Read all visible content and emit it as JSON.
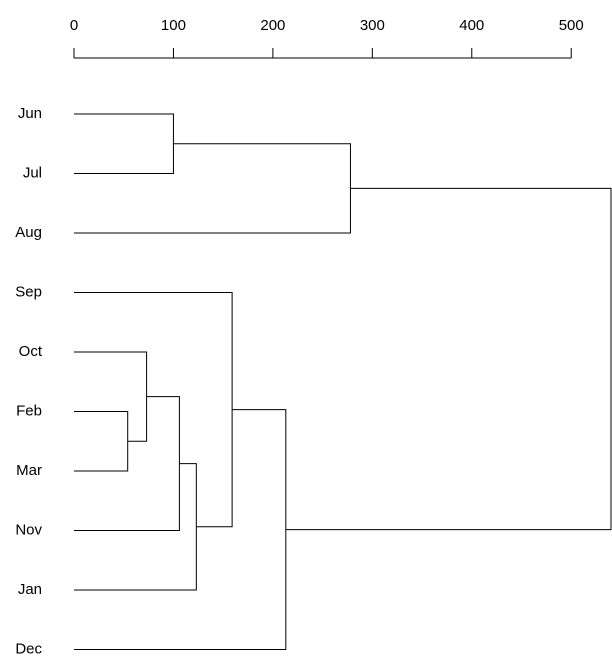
{
  "chart_data": {
    "type": "dendrogram",
    "categories": [
      "Jun",
      "Jul",
      "Aug",
      "Sep",
      "Oct",
      "Feb",
      "Mar",
      "Nov",
      "Jan",
      "Dec"
    ],
    "merges": [
      {
        "a": {
          "leaf": 0
        },
        "b": {
          "leaf": 1
        },
        "height": 100
      },
      {
        "a": {
          "merge": 0
        },
        "b": {
          "leaf": 2
        },
        "height": 278
      },
      {
        "a": {
          "leaf": 5
        },
        "b": {
          "leaf": 6
        },
        "height": 54
      },
      {
        "a": {
          "leaf": 4
        },
        "b": {
          "merge": 2
        },
        "height": 73
      },
      {
        "a": {
          "merge": 3
        },
        "b": {
          "leaf": 7
        },
        "height": 106
      },
      {
        "a": {
          "merge": 4
        },
        "b": {
          "leaf": 8
        },
        "height": 123
      },
      {
        "a": {
          "leaf": 3
        },
        "b": {
          "merge": 5
        },
        "height": 159
      },
      {
        "a": {
          "merge": 6
        },
        "b": {
          "leaf": 9
        },
        "height": 213
      },
      {
        "a": {
          "merge": 1
        },
        "b": {
          "merge": 7
        },
        "height": 540
      }
    ],
    "xlim": [
      0,
      540
    ],
    "xticks": [
      0,
      100,
      200,
      300,
      400,
      500
    ],
    "color": "#000000"
  }
}
